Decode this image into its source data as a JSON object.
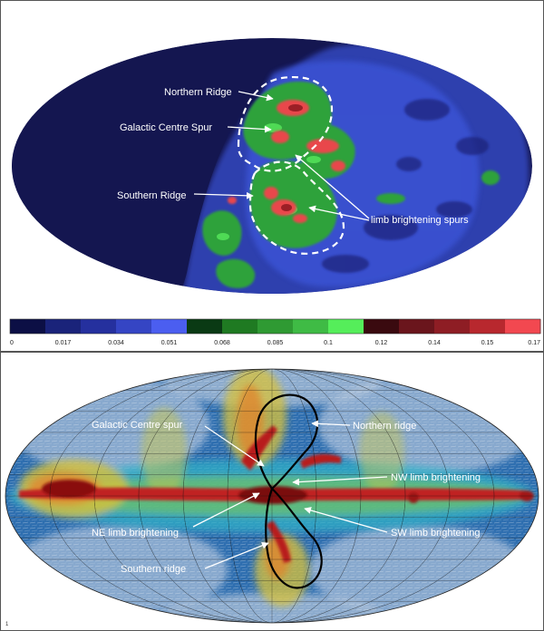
{
  "top_map": {
    "annotations": {
      "northern_ridge": "Northern Ridge",
      "galactic_centre_spur": "Galactic Centre Spur",
      "southern_ridge": "Southern Ridge",
      "limb_brightening_spurs": "limb brightening spurs"
    },
    "colorbar": {
      "ticks": [
        "0",
        "0.017",
        "0.034",
        "0.051",
        "0.068",
        "0.085",
        "0.1",
        "0.12",
        "0.14",
        "0.15",
        "0.17"
      ],
      "colors": [
        "#0c0f45",
        "#1a237a",
        "#25309e",
        "#3545c4",
        "#4b5ef0",
        "#0a3a14",
        "#1f7a22",
        "#2f9a33",
        "#3fbb45",
        "#55ee5a",
        "#3a0a0f",
        "#6a151c",
        "#8e1d24",
        "#b8282e",
        "#f24850"
      ]
    }
  },
  "bottom_map": {
    "annotations": {
      "galactic_centre_spur": "Galactic Centre spur",
      "northern_ridge": "Northern ridge",
      "nw_limb": "NW limb brightening",
      "ne_limb": "NE limb brightening",
      "sw_limb": "SW limb brightening",
      "southern_ridge": "Southern ridge"
    },
    "corner_mark": "1"
  }
}
